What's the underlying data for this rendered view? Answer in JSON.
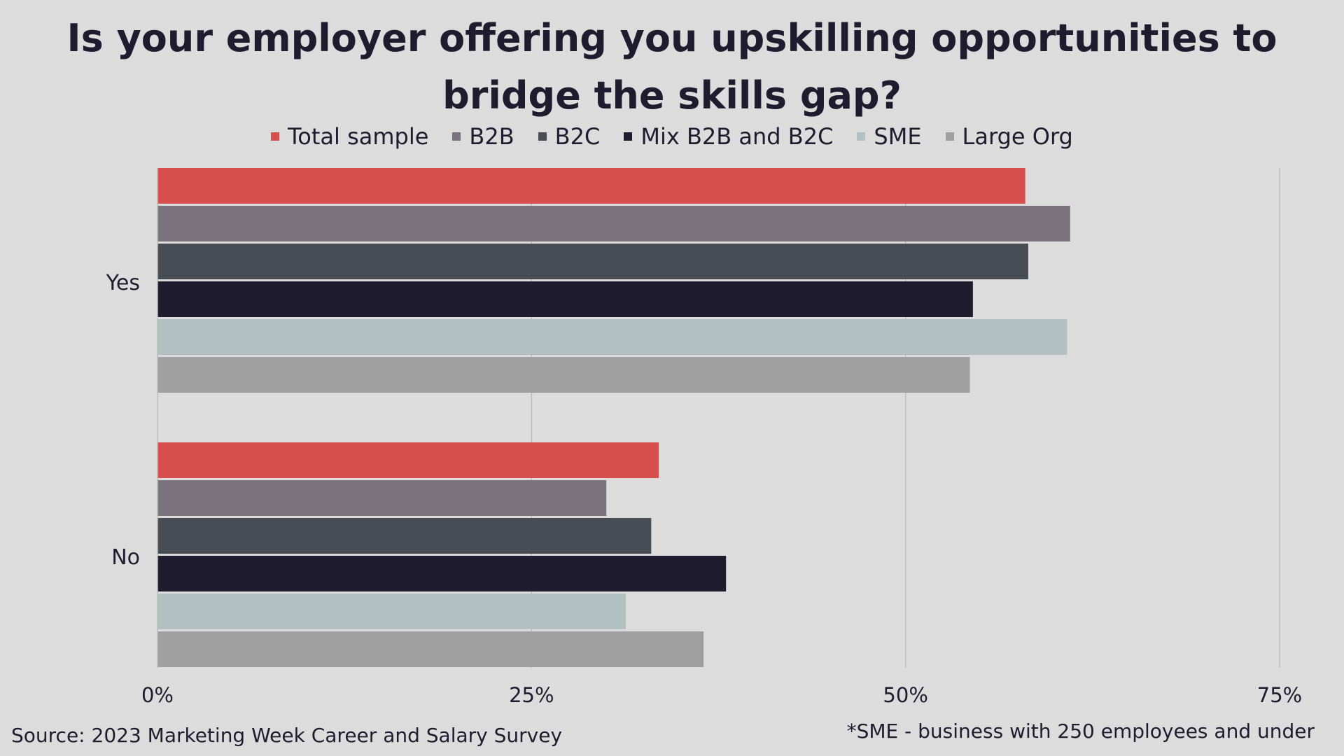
{
  "chart_data": {
    "type": "bar",
    "orientation": "horizontal",
    "title_line1": "Is your employer offering you upskilling opportunities to",
    "title_line2": "bridge the skills gap?",
    "categories": [
      "Yes",
      "No"
    ],
    "series": [
      {
        "name": "Total sample",
        "color": "#d64f4c",
        "values": [
          58,
          33.5
        ]
      },
      {
        "name": "B2B",
        "color": "#7a737e",
        "values": [
          61,
          30
        ]
      },
      {
        "name": "B2C",
        "color": "#474c55",
        "values": [
          58.2,
          33
        ]
      },
      {
        "name": "Mix B2B and B2C",
        "color": "#1e1c2e",
        "values": [
          54.5,
          38
        ]
      },
      {
        "name": "SME",
        "color": "#b1c0c0",
        "values": [
          60.8,
          31.3
        ]
      },
      {
        "name": "Large Org",
        "color": "#a0a0a0",
        "values": [
          54.3,
          36.5
        ]
      }
    ],
    "xlim": [
      0,
      75
    ],
    "xticks": [
      "0%",
      "25%",
      "50%",
      "75%"
    ],
    "xtick_values": [
      0,
      25,
      50,
      75
    ],
    "grid": "vertical",
    "legend_position": "top"
  },
  "footer": {
    "source": "Source: 2023 Marketing Week Career and Salary Survey",
    "note": "*SME - business with 250 employees and under"
  }
}
